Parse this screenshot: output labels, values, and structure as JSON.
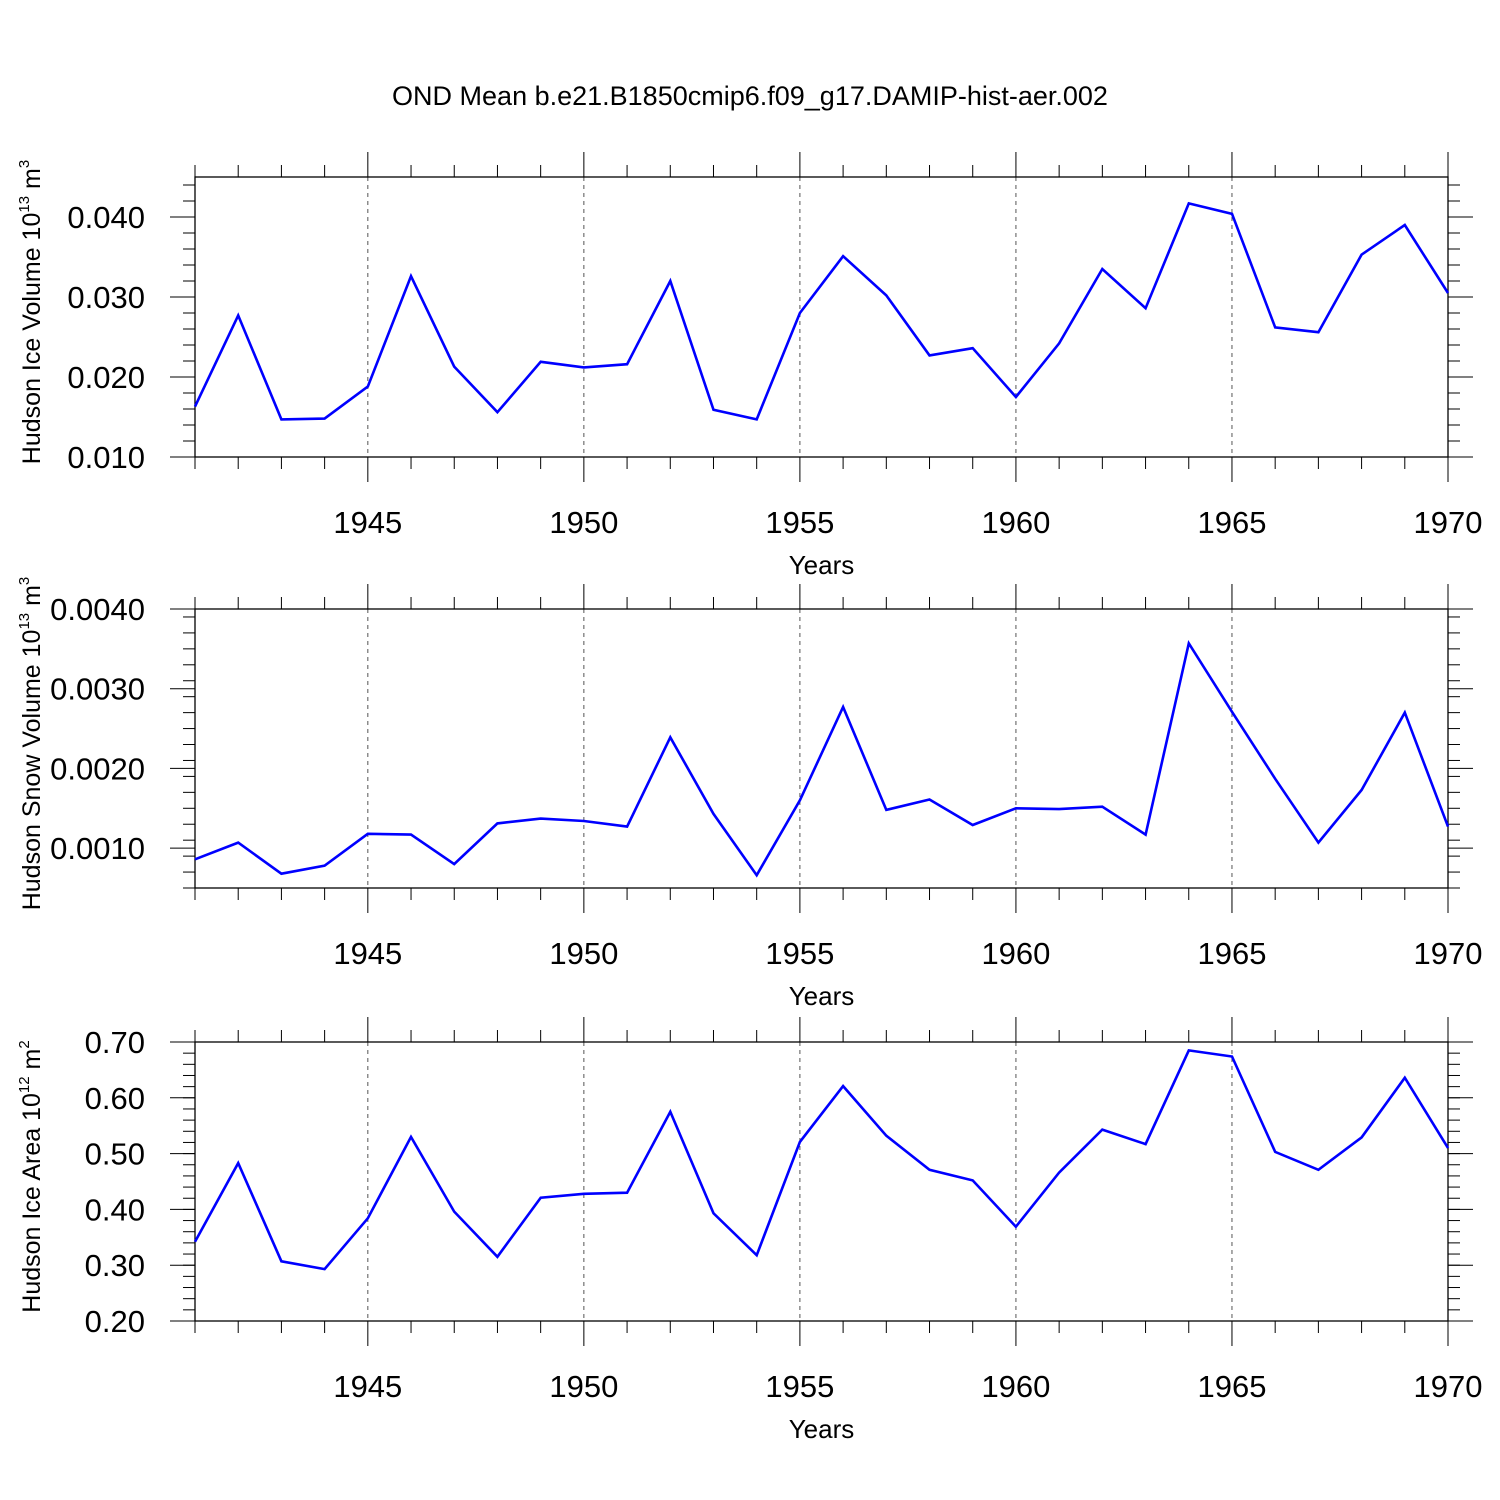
{
  "figure_title": "OND Mean b.e21.B1850cmip6.f09_g17.DAMIP-hist-aer.002",
  "line_color": "#0000ff",
  "chart_data": [
    {
      "type": "line",
      "title": "OND Mean b.e21.B1850cmip6.f09_g17.DAMIP-hist-aer.002",
      "xlabel": "Years",
      "ylabel": "Hudson Ice Volume 10",
      "ylabel_exp": "13",
      "ylabel_unit": " m",
      "ylabel_unit_exp": "3",
      "xlim": [
        1941,
        1970
      ],
      "ylim": [
        0.01,
        0.045
      ],
      "xticks": [
        1945,
        1950,
        1955,
        1960,
        1965,
        1970
      ],
      "xtick_labels": [
        "1945",
        "1950",
        "1955",
        "1960",
        "1965",
        "1970"
      ],
      "yticks": [
        0.01,
        0.02,
        0.03,
        0.04
      ],
      "ytick_labels": [
        "0.010",
        "0.020",
        "0.030",
        "0.040"
      ],
      "yminor_step": 0.002,
      "x": [
        1941,
        1942,
        1943,
        1944,
        1945,
        1946,
        1947,
        1948,
        1949,
        1950,
        1951,
        1952,
        1953,
        1954,
        1955,
        1956,
        1957,
        1958,
        1959,
        1960,
        1961,
        1962,
        1963,
        1964,
        1965,
        1966,
        1967,
        1968,
        1969,
        1970
      ],
      "values": [
        0.0163,
        0.0277,
        0.0147,
        0.0148,
        0.0188,
        0.0326,
        0.0213,
        0.0156,
        0.0219,
        0.0212,
        0.0216,
        0.032,
        0.0159,
        0.0147,
        0.028,
        0.0351,
        0.0302,
        0.0227,
        0.0236,
        0.0175,
        0.0242,
        0.0335,
        0.0286,
        0.0417,
        0.0404,
        0.0262,
        0.0256,
        0.0353,
        0.039,
        0.0305
      ]
    },
    {
      "type": "line",
      "xlabel": "Years",
      "ylabel": "Hudson Snow Volume 10",
      "ylabel_exp": "13",
      "ylabel_unit": " m",
      "ylabel_unit_exp": "3",
      "xlim": [
        1941,
        1970
      ],
      "ylim": [
        0.0005,
        0.004
      ],
      "xticks": [
        1945,
        1950,
        1955,
        1960,
        1965,
        1970
      ],
      "xtick_labels": [
        "1945",
        "1950",
        "1955",
        "1960",
        "1965",
        "1970"
      ],
      "yticks": [
        0.001,
        0.002,
        0.003,
        0.004
      ],
      "ytick_labels": [
        "0.0010",
        "0.0020",
        "0.0030",
        "0.0040"
      ],
      "yminor_step": 0.0002,
      "x": [
        1941,
        1942,
        1943,
        1944,
        1945,
        1946,
        1947,
        1948,
        1949,
        1950,
        1951,
        1952,
        1953,
        1954,
        1955,
        1956,
        1957,
        1958,
        1959,
        1960,
        1961,
        1962,
        1963,
        1964,
        1965,
        1966,
        1967,
        1968,
        1969,
        1970
      ],
      "values": [
        0.00086,
        0.00107,
        0.00068,
        0.00078,
        0.00118,
        0.00117,
        0.0008,
        0.00131,
        0.00137,
        0.00134,
        0.00127,
        0.00239,
        0.00143,
        0.00066,
        0.0016,
        0.00277,
        0.00148,
        0.00161,
        0.00129,
        0.0015,
        0.00149,
        0.00152,
        0.00117,
        0.00357,
        0.00271,
        0.00187,
        0.00107,
        0.00173,
        0.0027,
        0.00127
      ]
    },
    {
      "type": "line",
      "xlabel": "Years",
      "ylabel": "Hudson Ice Area 10",
      "ylabel_exp": "12",
      "ylabel_unit": " m",
      "ylabel_unit_exp": "2",
      "xlim": [
        1941,
        1970
      ],
      "ylim": [
        0.2,
        0.7
      ],
      "xticks": [
        1945,
        1950,
        1955,
        1960,
        1965,
        1970
      ],
      "xtick_labels": [
        "1945",
        "1950",
        "1955",
        "1960",
        "1965",
        "1970"
      ],
      "yticks": [
        0.2,
        0.3,
        0.4,
        0.5,
        0.6,
        0.7
      ],
      "ytick_labels": [
        "0.20",
        "0.30",
        "0.40",
        "0.50",
        "0.60",
        "0.70"
      ],
      "yminor_step": 0.02,
      "x": [
        1941,
        1942,
        1943,
        1944,
        1945,
        1946,
        1947,
        1948,
        1949,
        1950,
        1951,
        1952,
        1953,
        1954,
        1955,
        1956,
        1957,
        1958,
        1959,
        1960,
        1961,
        1962,
        1963,
        1964,
        1965,
        1966,
        1967,
        1968,
        1969,
        1970
      ],
      "values": [
        0.342,
        0.483,
        0.307,
        0.293,
        0.384,
        0.53,
        0.396,
        0.315,
        0.421,
        0.428,
        0.43,
        0.575,
        0.393,
        0.318,
        0.521,
        0.621,
        0.532,
        0.471,
        0.452,
        0.369,
        0.466,
        0.543,
        0.517,
        0.685,
        0.674,
        0.503,
        0.471,
        0.529,
        0.636,
        0.51
      ]
    }
  ]
}
